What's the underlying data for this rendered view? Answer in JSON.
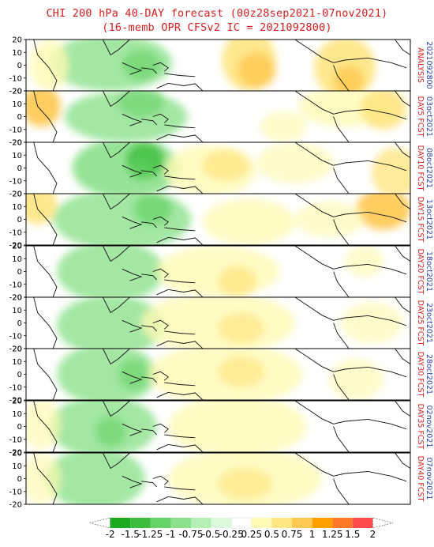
{
  "title": {
    "line1": "CHI 200 hPa 40-DAY forecast (00z28sep2021-07nov2021)",
    "line2": "(16-memb OPR CFSv2 IC = 2021092800)"
  },
  "y_ticks": [
    "20",
    "10",
    "0",
    "-10",
    "-20"
  ],
  "panels": [
    {
      "label_red": "ANALYSIS",
      "label_blue": "2021092800"
    },
    {
      "label_red": "DAY5 FCST",
      "label_blue": "03oct2021"
    },
    {
      "label_red": "DAY10 FCST",
      "label_blue": "08oct2021"
    },
    {
      "label_red": "DAY15 FCST",
      "label_blue": "13oct2021"
    },
    {
      "label_red": "DAY20 FCST",
      "label_blue": "18oct2021"
    },
    {
      "label_red": "DAY25 FCST",
      "label_blue": "23oct2021"
    },
    {
      "label_red": "DAY30 FCST",
      "label_blue": "28oct2021"
    },
    {
      "label_red": "DAY35 FCST",
      "label_blue": "02nov2021"
    },
    {
      "label_red": "DAY40 FCST",
      "label_blue": "07nov2021"
    }
  ],
  "colorbar": {
    "tick_labels": [
      "-2",
      "-1.5",
      "-1.25",
      "-1",
      "-0.75",
      "-0.5",
      "-0.25",
      "0.25",
      "0.5",
      "0.75",
      "1",
      "1.25",
      "1.5",
      "2"
    ],
    "colors": [
      "#ffffff",
      "#1eaa1e",
      "#3cbe3c",
      "#64d264",
      "#8ce18c",
      "#b4f0b4",
      "#dcfadc",
      "#ffffff",
      "#fffab4",
      "#ffe682",
      "#ffc850",
      "#ffa000",
      "#ff7828",
      "#ff4b4b",
      "#ffffff"
    ]
  },
  "colors": {
    "title": "#d42020",
    "label_red": "#d42020",
    "label_blue": "#2a3fb0",
    "green": "#8ce18c",
    "orange": "#ffc850"
  }
}
